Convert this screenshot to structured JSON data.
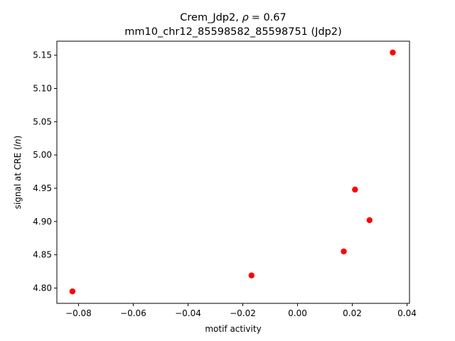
{
  "chart_data": {
    "type": "scatter",
    "title": {
      "prefix": "Crem_Jdp2, ",
      "rho_symbol": "ρ",
      "rho_value": "= 0.67",
      "subtitle": "mm10_chr12_85598582_85598751 (Jdp2)"
    },
    "xlabel": "motif activity",
    "ylabel": {
      "prefix": "signal at CRE (",
      "italic": "ln",
      "suffix": ")"
    },
    "xlim": [
      -0.0879,
      0.0409
    ],
    "ylim": [
      4.777,
      5.171
    ],
    "xticks": [
      -0.08,
      -0.06,
      -0.04,
      -0.02,
      0.0,
      0.02,
      0.04
    ],
    "xtick_labels": [
      "−0.08",
      "−0.06",
      "−0.04",
      "−0.02",
      "0.00",
      "0.02",
      "0.04"
    ],
    "yticks": [
      4.8,
      4.85,
      4.9,
      4.95,
      5.0,
      5.05,
      5.1,
      5.15
    ],
    "ytick_labels": [
      "4.80",
      "4.85",
      "4.90",
      "4.95",
      "5.00",
      "5.05",
      "5.10",
      "5.15"
    ],
    "grid": false,
    "point_color": "#ff0000",
    "points": [
      {
        "x": -0.0822,
        "y": 4.795
      },
      {
        "x": -0.0168,
        "y": 4.819
      },
      {
        "x": 0.0169,
        "y": 4.855
      },
      {
        "x": 0.021,
        "y": 4.948
      },
      {
        "x": 0.0263,
        "y": 4.902
      },
      {
        "x": 0.0348,
        "y": 5.154
      }
    ]
  }
}
